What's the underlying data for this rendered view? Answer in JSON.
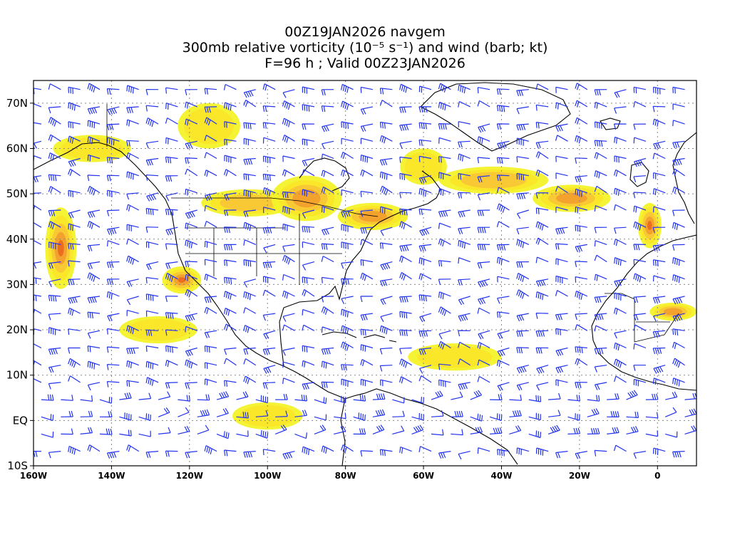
{
  "title": {
    "line1": "00Z19JAN2026 navgem",
    "line2": "300mb relative vorticity (10⁻⁵ s⁻¹) and wind (barb; kt)",
    "line3": "F=96 h ; Valid 00Z23JAN2026"
  },
  "axes": {
    "lon_min": -160,
    "lon_max": 10,
    "lat_min": -10,
    "lat_max": 75,
    "lat_ticks": [
      {
        "value": 70,
        "label": "70N"
      },
      {
        "value": 60,
        "label": "60N"
      },
      {
        "value": 50,
        "label": "50N"
      },
      {
        "value": 40,
        "label": "40N"
      },
      {
        "value": 30,
        "label": "30N"
      },
      {
        "value": 20,
        "label": "20N"
      },
      {
        "value": 10,
        "label": "10N"
      },
      {
        "value": 0,
        "label": "EQ"
      },
      {
        "value": -10,
        "label": "10S"
      }
    ],
    "lon_ticks": [
      {
        "value": -160,
        "label": "160W"
      },
      {
        "value": -140,
        "label": "140W"
      },
      {
        "value": -120,
        "label": "120W"
      },
      {
        "value": -100,
        "label": "100W"
      },
      {
        "value": -80,
        "label": "80W"
      },
      {
        "value": -60,
        "label": "60W"
      },
      {
        "value": -40,
        "label": "40W"
      },
      {
        "value": -20,
        "label": "20W"
      },
      {
        "value": 0,
        "label": "0"
      }
    ],
    "grid": true
  },
  "colors": {
    "barb": "#2233ee",
    "coast": "#000000",
    "shade_light": "#f3f32a",
    "shade_yellow": "#fbe62a",
    "shade_amber": "#f8c636",
    "shade_orange": "#f2a02e",
    "shade_red": "#ea6a1f"
  },
  "vorticity_features": [
    {
      "lon": -153,
      "lat": 38,
      "slon": 4,
      "slat": 9,
      "level": 4
    },
    {
      "lon": -122,
      "lat": 31,
      "slon": 5,
      "slat": 3,
      "level": 4
    },
    {
      "lon": -105,
      "lat": 48,
      "slon": 12,
      "slat": 3,
      "level": 2
    },
    {
      "lon": -90,
      "lat": 49,
      "slon": 9,
      "slat": 5,
      "level": 3
    },
    {
      "lon": -73,
      "lat": 45,
      "slon": 9,
      "slat": 3,
      "level": 3
    },
    {
      "lon": -42,
      "lat": 53,
      "slon": 14,
      "slat": 3,
      "level": 2
    },
    {
      "lon": -22,
      "lat": 49,
      "slon": 10,
      "slat": 3,
      "level": 3
    },
    {
      "lon": -2,
      "lat": 43,
      "slon": 3,
      "slat": 5,
      "level": 4
    },
    {
      "lon": 4,
      "lat": 24,
      "slon": 6,
      "slat": 2,
      "level": 3
    },
    {
      "lon": -128,
      "lat": 20,
      "slon": 10,
      "slat": 3,
      "level": 1
    },
    {
      "lon": -52,
      "lat": 14,
      "slon": 12,
      "slat": 3,
      "level": 1
    },
    {
      "lon": -100,
      "lat": 1,
      "slon": 9,
      "slat": 3,
      "level": 1
    },
    {
      "lon": -145,
      "lat": 60,
      "slon": 10,
      "slat": 3,
      "level": 1
    },
    {
      "lon": -115,
      "lat": 65,
      "slon": 8,
      "slat": 5,
      "level": 1
    },
    {
      "lon": -60,
      "lat": 56,
      "slon": 6,
      "slat": 4,
      "level": 1
    }
  ]
}
